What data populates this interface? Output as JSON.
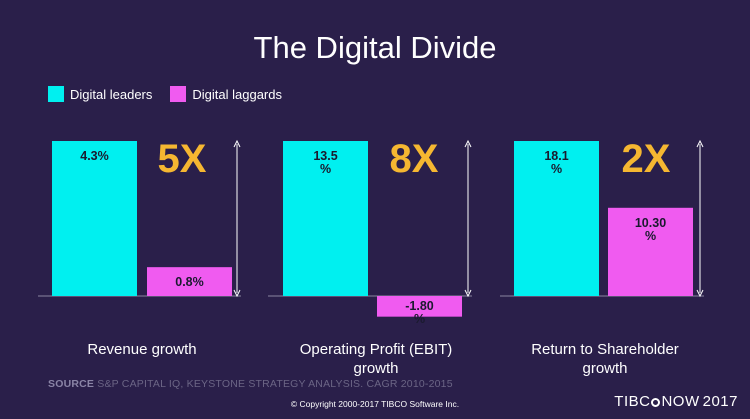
{
  "title": "The Digital Divide",
  "legend": [
    {
      "label": "Digital leaders",
      "color": "#00f0f0"
    },
    {
      "label": "Digital laggards",
      "color": "#f05bf0"
    }
  ],
  "multiplier_color": "#f5b731",
  "source_label": "SOURCE",
  "source_text": "S&P CAPITAL IQ, KEYSTONE STRATEGY ANALYSIS. CAGR 2010-2015",
  "copyright": "© Copyright 2000-2017 TIBCO Software Inc.",
  "logo": {
    "pre": "TIBC",
    "post": "NOW",
    "year": "2017"
  },
  "chart_data": [
    {
      "type": "bar",
      "xlabel": [
        "Revenue growth"
      ],
      "multiplier": "5X",
      "ylim": [
        -2,
        4.3
      ],
      "series": [
        {
          "name": "Digital leaders",
          "value": 4.3,
          "label": "4.3%"
        },
        {
          "name": "Digital laggards",
          "value": 0.8,
          "label": "0.8%"
        }
      ]
    },
    {
      "type": "bar",
      "xlabel": [
        "Operating Profit (EBIT)",
        "growth"
      ],
      "multiplier": "8X",
      "ylim": [
        -2,
        13.5
      ],
      "series": [
        {
          "name": "Digital leaders",
          "value": 13.5,
          "label": [
            "13.5",
            "%"
          ]
        },
        {
          "name": "Digital laggards",
          "value": -1.8,
          "label": [
            "-1.80",
            "%"
          ]
        }
      ]
    },
    {
      "type": "bar",
      "xlabel": [
        "Return to Shareholder",
        "growth"
      ],
      "multiplier": "2X",
      "ylim": [
        -2,
        18.1
      ],
      "series": [
        {
          "name": "Digital leaders",
          "value": 18.1,
          "label": [
            "18.1",
            "%"
          ]
        },
        {
          "name": "Digital laggards",
          "value": 10.3,
          "label": [
            "10.30",
            "%"
          ]
        }
      ]
    }
  ]
}
